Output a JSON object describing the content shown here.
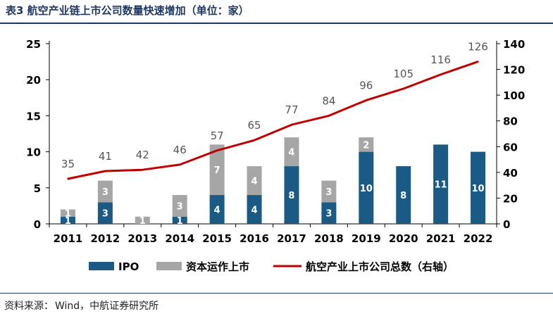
{
  "title": "表3 航空产业链上市公司数量快速增加（单位：家）",
  "source": {
    "label": "资料来源：",
    "text": "Wind，中航证券研究所"
  },
  "colors": {
    "ipo": "#1a5a84",
    "capital": "#a6a6a6",
    "total_line": "#c00000",
    "title": "#1f3864"
  },
  "chart_data": {
    "type": "bar",
    "categories": [
      "2011",
      "2012",
      "2013",
      "2014",
      "2015",
      "2016",
      "2017",
      "2018",
      "2019",
      "2020",
      "2021",
      "2022"
    ],
    "series": [
      {
        "name": "IPO",
        "type": "stacked-bar",
        "axis": "left",
        "values": [
          1,
          3,
          0,
          1,
          4,
          4,
          8,
          3,
          10,
          8,
          11,
          10
        ],
        "labels": [
          "1",
          "3",
          "",
          "1",
          "4",
          "4",
          "8",
          "3",
          "10",
          "8",
          "11",
          "10"
        ]
      },
      {
        "name": "资本运作上市",
        "type": "stacked-bar",
        "axis": "left",
        "values": [
          1,
          3,
          1,
          3,
          7,
          4,
          4,
          3,
          2,
          0,
          0,
          0
        ],
        "labels": [
          "1",
          "3",
          "1",
          "3",
          "7",
          "4",
          "4",
          "3",
          "2",
          "",
          "",
          ""
        ]
      },
      {
        "name": "航空产业上市公司总数（右轴）",
        "type": "line",
        "axis": "right",
        "values": [
          35,
          41,
          42,
          46,
          57,
          65,
          77,
          84,
          96,
          105,
          116,
          126
        ],
        "labels": [
          "35",
          "41",
          "42",
          "46",
          "57",
          "65",
          "77",
          "84",
          "96",
          "105",
          "116",
          "126"
        ]
      }
    ],
    "y_left": {
      "min": 0,
      "max": 25,
      "ticks": [
        "0",
        "5",
        "10",
        "15",
        "20",
        "25"
      ]
    },
    "y_right": {
      "min": 0,
      "max": 140,
      "ticks": [
        "0",
        "20",
        "40",
        "60",
        "80",
        "100",
        "120",
        "140"
      ]
    },
    "legend": [
      "IPO",
      "资本运作上市",
      "航空产业上市公司总数（右轴）"
    ],
    "legend_position": "bottom"
  }
}
